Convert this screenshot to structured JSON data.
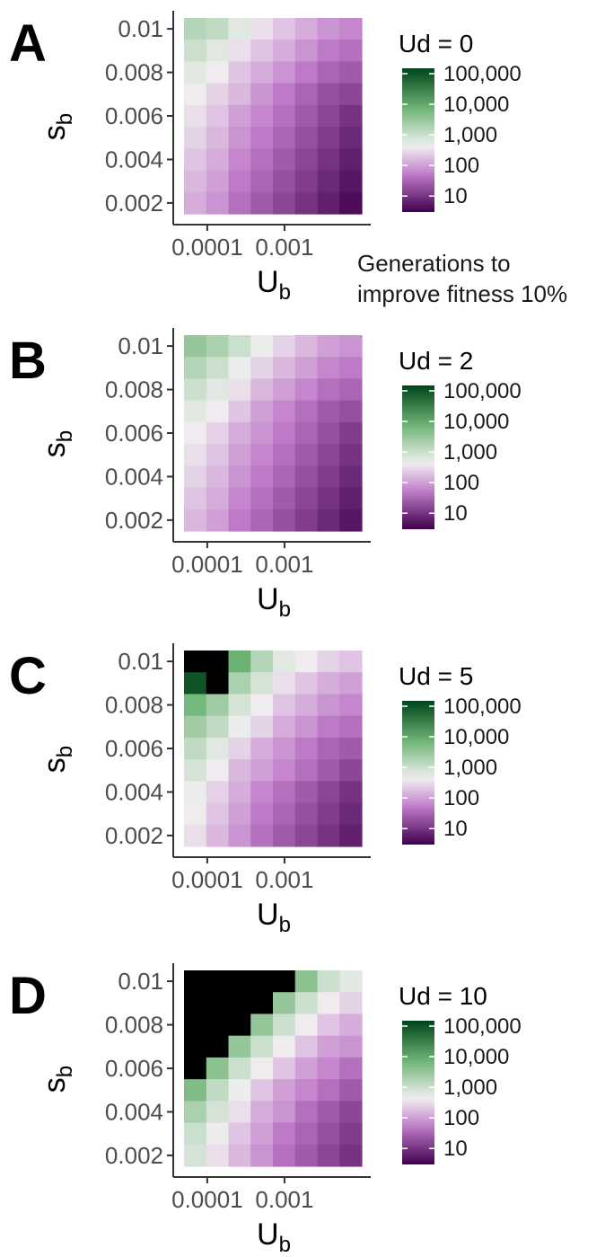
{
  "chart_data": [
    {
      "type": "heatmap",
      "panel_label": "A",
      "legend_title": "Ud = 0",
      "xlabel_main": "U",
      "xlabel_sub": "b",
      "ylabel_main": "s",
      "ylabel_sub": "b",
      "x_scale": "log10",
      "xlim": [
        5e-05,
        0.01
      ],
      "x_ticks": [
        0.0001,
        0.001
      ],
      "x_tick_labels": [
        "0.0001",
        "0.001"
      ],
      "y_ticks": [
        0.002,
        0.004,
        0.006,
        0.008,
        0.01
      ],
      "y_tick_labels": [
        "0.002",
        "0.004",
        "0.006",
        "0.008",
        "0.01"
      ],
      "ylim": [
        0.0015,
        0.0105
      ],
      "color_scale": "log10",
      "color_range": [
        3,
        150000
      ],
      "legend_ticks": [
        10,
        100,
        1000,
        10000,
        100000
      ],
      "legend_tick_labels": [
        "10",
        "100",
        "1,000",
        "10,000",
        "100,000"
      ],
      "grid_log10": [
        [
          3.2,
          3.1,
          2.8,
          2.5,
          2.3,
          2.1,
          1.9,
          1.8
        ],
        [
          3.0,
          2.8,
          2.5,
          2.3,
          2.1,
          1.9,
          1.7,
          1.6
        ],
        [
          2.8,
          2.6,
          2.3,
          2.1,
          1.9,
          1.7,
          1.5,
          1.4
        ],
        [
          2.6,
          2.4,
          2.2,
          1.9,
          1.7,
          1.5,
          1.3,
          1.2
        ],
        [
          2.5,
          2.3,
          2.0,
          1.8,
          1.6,
          1.4,
          1.2,
          1.0
        ],
        [
          2.4,
          2.2,
          1.9,
          1.7,
          1.5,
          1.3,
          1.1,
          0.9
        ],
        [
          2.3,
          2.1,
          1.8,
          1.6,
          1.4,
          1.2,
          1.0,
          0.8
        ],
        [
          2.2,
          2.0,
          1.7,
          1.5,
          1.3,
          1.1,
          0.9,
          0.7
        ],
        [
          2.1,
          1.9,
          1.6,
          1.4,
          1.2,
          1.0,
          0.8,
          0.6
        ]
      ]
    },
    {
      "type": "heatmap",
      "panel_label": "B",
      "legend_title": "Ud = 2",
      "xlabel_main": "U",
      "xlabel_sub": "b",
      "ylabel_main": "s",
      "ylabel_sub": "b",
      "x_scale": "log10",
      "xlim": [
        5e-05,
        0.01
      ],
      "x_ticks": [
        0.0001,
        0.001
      ],
      "x_tick_labels": [
        "0.0001",
        "0.001"
      ],
      "y_ticks": [
        0.002,
        0.004,
        0.006,
        0.008,
        0.01
      ],
      "y_tick_labels": [
        "0.002",
        "0.004",
        "0.006",
        "0.008",
        "0.01"
      ],
      "ylim": [
        0.0015,
        0.0105
      ],
      "color_scale": "log10",
      "color_range": [
        3,
        150000
      ],
      "legend_ticks": [
        10,
        100,
        1000,
        10000,
        100000
      ],
      "legend_tick_labels": [
        "10",
        "100",
        "1,000",
        "10,000",
        "100,000"
      ],
      "grid_log10": [
        [
          3.5,
          3.3,
          3.0,
          2.7,
          2.4,
          2.2,
          2.0,
          1.9
        ],
        [
          3.2,
          3.0,
          2.7,
          2.4,
          2.2,
          2.0,
          1.8,
          1.7
        ],
        [
          3.0,
          2.8,
          2.5,
          2.2,
          2.0,
          1.8,
          1.6,
          1.5
        ],
        [
          2.8,
          2.6,
          2.3,
          2.0,
          1.8,
          1.6,
          1.4,
          1.3
        ],
        [
          2.6,
          2.4,
          2.1,
          1.9,
          1.7,
          1.5,
          1.3,
          1.1
        ],
        [
          2.5,
          2.3,
          2.0,
          1.8,
          1.6,
          1.4,
          1.2,
          1.0
        ],
        [
          2.4,
          2.2,
          1.9,
          1.7,
          1.5,
          1.3,
          1.1,
          0.9
        ],
        [
          2.3,
          2.1,
          1.8,
          1.6,
          1.4,
          1.2,
          1.0,
          0.8
        ],
        [
          2.2,
          2.0,
          1.7,
          1.5,
          1.3,
          1.1,
          0.9,
          0.7
        ]
      ]
    },
    {
      "type": "heatmap",
      "panel_label": "C",
      "legend_title": "Ud = 5",
      "xlabel_main": "U",
      "xlabel_sub": "b",
      "ylabel_main": "s",
      "ylabel_sub": "b",
      "x_scale": "log10",
      "xlim": [
        5e-05,
        0.01
      ],
      "x_ticks": [
        0.0001,
        0.001
      ],
      "x_tick_labels": [
        "0.0001",
        "0.001"
      ],
      "y_ticks": [
        0.002,
        0.004,
        0.006,
        0.008,
        0.01
      ],
      "y_tick_labels": [
        "0.002",
        "0.004",
        "0.006",
        "0.008",
        "0.01"
      ],
      "ylim": [
        0.0015,
        0.0105
      ],
      "color_scale": "log10",
      "color_range": [
        3,
        150000
      ],
      "legend_ticks": [
        10,
        100,
        1000,
        10000,
        100000
      ],
      "legend_tick_labels": [
        "10",
        "100",
        "1,000",
        "10,000",
        "100,000"
      ],
      "missing_color": "#000000",
      "grid_log10": [
        [
          null,
          null,
          3.9,
          3.2,
          2.8,
          2.6,
          2.4,
          2.3
        ],
        [
          5.0,
          null,
          3.3,
          2.9,
          2.5,
          2.3,
          2.1,
          2.0
        ],
        [
          3.8,
          3.4,
          2.9,
          2.6,
          2.3,
          2.1,
          1.9,
          1.8
        ],
        [
          3.4,
          3.1,
          2.7,
          2.4,
          2.1,
          1.9,
          1.7,
          1.6
        ],
        [
          3.1,
          2.8,
          2.4,
          2.1,
          1.9,
          1.7,
          1.5,
          1.4
        ],
        [
          2.9,
          2.6,
          2.2,
          2.0,
          1.8,
          1.6,
          1.4,
          1.2
        ],
        [
          2.7,
          2.4,
          2.1,
          1.8,
          1.6,
          1.4,
          1.2,
          1.0
        ],
        [
          2.6,
          2.3,
          2.0,
          1.7,
          1.5,
          1.3,
          1.1,
          0.9
        ],
        [
          2.5,
          2.2,
          1.9,
          1.6,
          1.4,
          1.2,
          1.0,
          0.8
        ]
      ]
    },
    {
      "type": "heatmap",
      "panel_label": "D",
      "legend_title": "Ud = 10",
      "xlabel_main": "U",
      "xlabel_sub": "b",
      "ylabel_main": "s",
      "ylabel_sub": "b",
      "x_scale": "log10",
      "xlim": [
        5e-05,
        0.01
      ],
      "x_ticks": [
        0.0001,
        0.001
      ],
      "x_tick_labels": [
        "0.0001",
        "0.001"
      ],
      "y_ticks": [
        0.002,
        0.004,
        0.006,
        0.008,
        0.01
      ],
      "y_tick_labels": [
        "0.002",
        "0.004",
        "0.006",
        "0.008",
        "0.01"
      ],
      "ylim": [
        0.0015,
        0.0105
      ],
      "color_scale": "log10",
      "color_range": [
        3,
        150000
      ],
      "legend_ticks": [
        10,
        100,
        1000,
        10000,
        100000
      ],
      "legend_tick_labels": [
        "10",
        "100",
        "1,000",
        "10,000",
        "100,000"
      ],
      "missing_color": "#000000",
      "grid_log10": [
        [
          null,
          null,
          null,
          null,
          null,
          3.6,
          3.0,
          2.8
        ],
        [
          null,
          null,
          null,
          null,
          3.5,
          3.0,
          2.6,
          2.4
        ],
        [
          null,
          null,
          null,
          3.5,
          3.0,
          2.6,
          2.3,
          2.1
        ],
        [
          null,
          null,
          3.5,
          3.0,
          2.6,
          2.3,
          2.0,
          1.9
        ],
        [
          null,
          3.6,
          3.0,
          2.6,
          2.3,
          2.0,
          1.8,
          1.6
        ],
        [
          3.7,
          3.1,
          2.7,
          2.3,
          2.0,
          1.8,
          1.6,
          1.4
        ],
        [
          3.3,
          2.9,
          2.5,
          2.1,
          1.9,
          1.6,
          1.4,
          1.2
        ],
        [
          3.0,
          2.7,
          2.3,
          2.0,
          1.7,
          1.5,
          1.3,
          1.1
        ],
        [
          2.9,
          2.5,
          2.2,
          1.9,
          1.6,
          1.4,
          1.2,
          1.0
        ]
      ]
    }
  ],
  "caption_line1": "Generations to",
  "caption_line2": "improve fitness 10%",
  "palette": {
    "low": "#40004b",
    "mid_low": "#c27fcb",
    "mid": "#f1f0f1",
    "mid_high": "#6fb576",
    "high": "#00441b"
  }
}
